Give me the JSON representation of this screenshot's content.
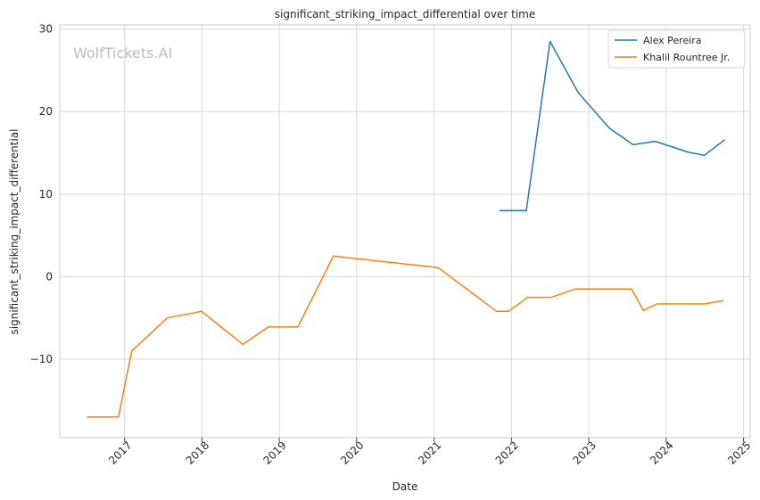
{
  "chart_data": {
    "type": "line",
    "title": "significant_striking_impact_differential over time",
    "xlabel": "Date",
    "ylabel": "significant_striking_impact_differential",
    "watermark": "WolfTickets.AI",
    "xlim": [
      "2016-03-01",
      "2025-02-01"
    ],
    "ylim": [
      -19.5,
      30.5
    ],
    "x_ticks": [
      "2017-01-01",
      "2018-01-01",
      "2019-01-01",
      "2020-01-01",
      "2021-01-01",
      "2022-01-01",
      "2023-01-01",
      "2024-01-01",
      "2025-01-01"
    ],
    "x_tick_labels": [
      "2017",
      "2018",
      "2019",
      "2020",
      "2021",
      "2022",
      "2023",
      "2024",
      "2025"
    ],
    "y_ticks": [
      -10,
      0,
      10,
      20,
      30
    ],
    "y_tick_labels": [
      "−10",
      "0",
      "10",
      "20",
      "30"
    ],
    "grid": true,
    "legend_position": "top-right",
    "series": [
      {
        "name": "Alex Pereira",
        "color": "#1f77b4",
        "x": [
          "2021-11-06",
          "2022-03-12",
          "2022-07-02",
          "2022-11-12",
          "2023-04-08",
          "2023-07-29",
          "2023-11-11",
          "2024-04-13",
          "2024-06-29",
          "2024-10-05"
        ],
        "y": [
          8.0,
          8.0,
          28.5,
          22.3,
          18.0,
          16.0,
          16.4,
          15.1,
          14.7,
          16.6
        ]
      },
      {
        "name": "Khalil Rountree Jr.",
        "color": "#ff7f0e",
        "x": [
          "2016-07-07",
          "2016-12-03",
          "2017-02-04",
          "2017-07-22",
          "2017-12-30",
          "2018-07-14",
          "2018-11-10",
          "2019-03-30",
          "2019-09-14",
          "2021-01-20",
          "2021-10-23",
          "2021-12-18",
          "2022-03-19",
          "2022-07-09",
          "2022-10-29",
          "2023-07-22",
          "2023-09-16",
          "2023-11-18",
          "2024-06-29",
          "2024-09-28"
        ],
        "y": [
          -17.0,
          -17.0,
          -9.0,
          -5.0,
          -4.2,
          -8.2,
          -6.1,
          -6.1,
          2.5,
          1.1,
          -4.2,
          -4.2,
          -2.5,
          -2.5,
          -1.5,
          -1.5,
          -4.1,
          -3.3,
          -3.3,
          -2.9
        ]
      }
    ]
  }
}
